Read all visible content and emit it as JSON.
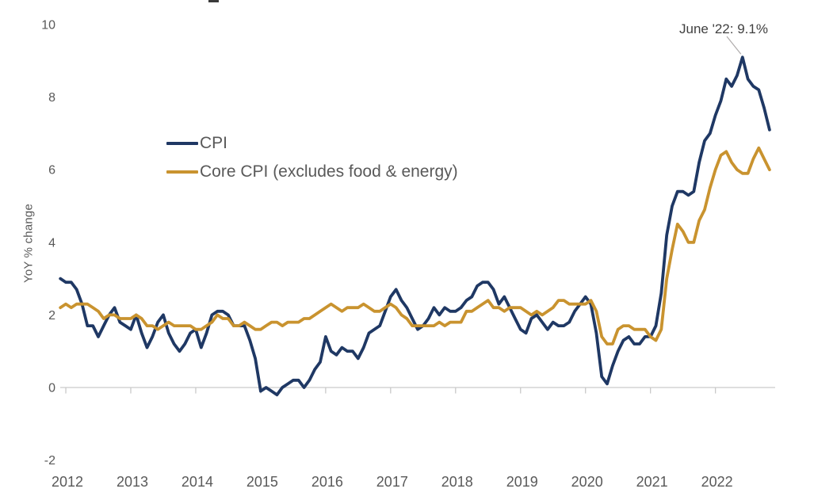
{
  "colors": {
    "cpi_line": "#1F3864",
    "core_cpi_line": "#C9932F",
    "axis_line": "#C9C9C9",
    "axis_text": "#595959",
    "legend_text": "#595959",
    "annotation_text": "#404040",
    "leader_line": "#AFABAB",
    "background": "#FFFFFF"
  },
  "chart_data": {
    "type": "line",
    "title": "",
    "xlabel": "",
    "ylabel": "YoY % change",
    "frequency": "monthly",
    "x_start": "2011-12",
    "x_end": "2022-11",
    "x_tick_labels": [
      "2012",
      "2013",
      "2014",
      "2015",
      "2016",
      "2017",
      "2018",
      "2019",
      "2020",
      "2021",
      "2022"
    ],
    "y_ticks": [
      10,
      8,
      6,
      4,
      2,
      0,
      -2
    ],
    "ylim": [
      -2,
      10
    ],
    "grid": false,
    "legend_position": "inside-upper-left",
    "annotation": {
      "text": "June '22: 9.1%",
      "points_to": {
        "x": "2022-06",
        "y": 9.1
      }
    },
    "series": [
      {
        "name": "CPI",
        "color": "#1F3864",
        "values": [
          3.0,
          2.9,
          2.9,
          2.7,
          2.3,
          1.7,
          1.7,
          1.4,
          1.7,
          2.0,
          2.2,
          1.8,
          1.7,
          1.6,
          2.0,
          1.5,
          1.1,
          1.4,
          1.8,
          2.0,
          1.5,
          1.2,
          1.0,
          1.2,
          1.5,
          1.6,
          1.1,
          1.5,
          2.0,
          2.1,
          2.1,
          2.0,
          1.7,
          1.7,
          1.7,
          1.3,
          0.8,
          -0.1,
          0.0,
          -0.1,
          -0.2,
          0.0,
          0.1,
          0.2,
          0.2,
          0.0,
          0.2,
          0.5,
          0.7,
          1.4,
          1.0,
          0.9,
          1.1,
          1.0,
          1.0,
          0.8,
          1.1,
          1.5,
          1.6,
          1.7,
          2.1,
          2.5,
          2.7,
          2.4,
          2.2,
          1.9,
          1.6,
          1.7,
          1.9,
          2.2,
          2.0,
          2.2,
          2.1,
          2.1,
          2.2,
          2.4,
          2.5,
          2.8,
          2.9,
          2.9,
          2.7,
          2.3,
          2.5,
          2.2,
          1.9,
          1.6,
          1.5,
          1.9,
          2.0,
          1.8,
          1.6,
          1.8,
          1.7,
          1.7,
          1.8,
          2.1,
          2.3,
          2.5,
          2.3,
          1.5,
          0.3,
          0.1,
          0.6,
          1.0,
          1.3,
          1.4,
          1.2,
          1.2,
          1.4,
          1.4,
          1.7,
          2.6,
          4.2,
          5.0,
          5.4,
          5.4,
          5.3,
          5.4,
          6.2,
          6.8,
          7.0,
          7.5,
          7.9,
          8.5,
          8.3,
          8.6,
          9.1,
          8.5,
          8.3,
          8.2,
          7.7,
          7.1
        ]
      },
      {
        "name": "Core CPI (excludes food & energy)",
        "color": "#C9932F",
        "values": [
          2.2,
          2.3,
          2.2,
          2.3,
          2.3,
          2.3,
          2.2,
          2.1,
          1.9,
          2.0,
          2.0,
          1.9,
          1.9,
          1.9,
          2.0,
          1.9,
          1.7,
          1.7,
          1.6,
          1.7,
          1.8,
          1.7,
          1.7,
          1.7,
          1.7,
          1.6,
          1.6,
          1.7,
          1.8,
          2.0,
          1.9,
          1.9,
          1.7,
          1.7,
          1.8,
          1.7,
          1.6,
          1.6,
          1.7,
          1.8,
          1.8,
          1.7,
          1.8,
          1.8,
          1.8,
          1.9,
          1.9,
          2.0,
          2.1,
          2.2,
          2.3,
          2.2,
          2.1,
          2.2,
          2.2,
          2.2,
          2.3,
          2.2,
          2.1,
          2.1,
          2.2,
          2.3,
          2.2,
          2.0,
          1.9,
          1.7,
          1.7,
          1.7,
          1.7,
          1.7,
          1.8,
          1.7,
          1.8,
          1.8,
          1.8,
          2.1,
          2.1,
          2.2,
          2.3,
          2.4,
          2.2,
          2.2,
          2.1,
          2.2,
          2.2,
          2.2,
          2.1,
          2.0,
          2.1,
          2.0,
          2.1,
          2.2,
          2.4,
          2.4,
          2.3,
          2.3,
          2.3,
          2.3,
          2.4,
          2.1,
          1.4,
          1.2,
          1.2,
          1.6,
          1.7,
          1.7,
          1.6,
          1.6,
          1.6,
          1.4,
          1.3,
          1.6,
          3.0,
          3.8,
          4.5,
          4.3,
          4.0,
          4.0,
          4.6,
          4.9,
          5.5,
          6.0,
          6.4,
          6.5,
          6.2,
          6.0,
          5.9,
          5.9,
          6.3,
          6.6,
          6.3,
          6.0
        ]
      }
    ]
  }
}
